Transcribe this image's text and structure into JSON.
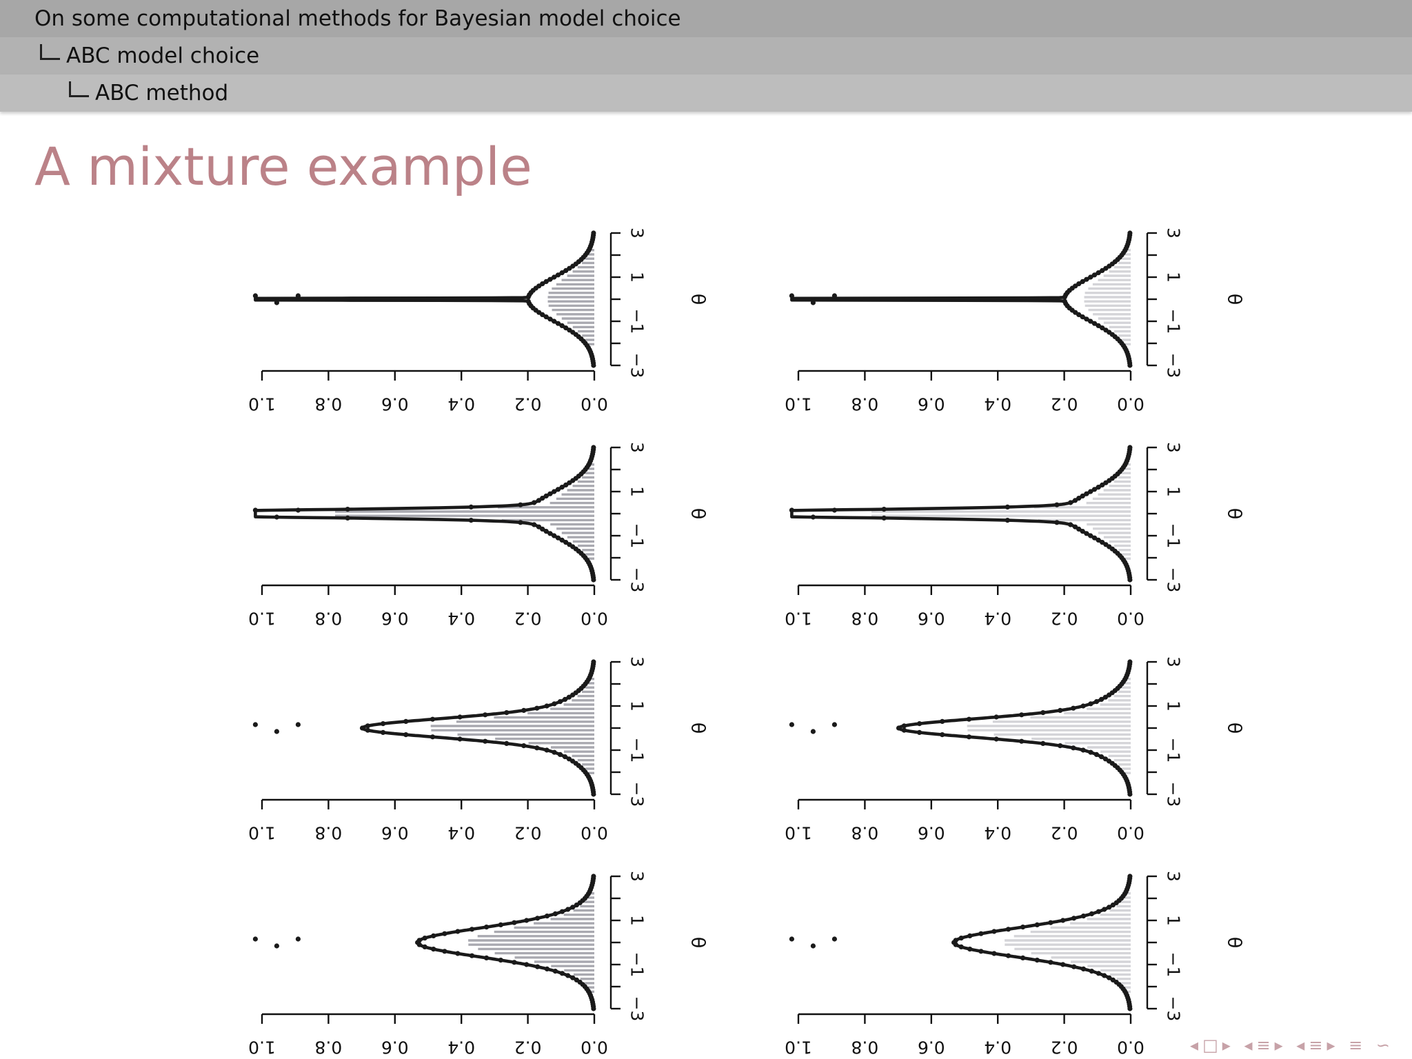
{
  "header": {
    "title": "On some computational methods for Bayesian model choice",
    "section": "ABC model choice",
    "subsection": "ABC method"
  },
  "frame_title": "A mixture example",
  "navigation_icons": [
    "arrow-left-icon",
    "frame-icon",
    "arrow-right-icon",
    "subsection-icon",
    "section-icon",
    "align-icon",
    "search-icon"
  ],
  "colors": {
    "title": "#bb8288",
    "curve": "#1a1a1a",
    "histogram_left": "#a9a9b0",
    "histogram_right": "#d4d4d8"
  },
  "chart_data": [
    {
      "type": "line",
      "panel": "row1-left",
      "xlabel": "θ",
      "ylabel": "",
      "xlim": [
        -3,
        3
      ],
      "ylim": [
        0,
        1
      ],
      "xticks": [
        "-3",
        "-1",
        "1",
        "3"
      ],
      "yticks": [
        "0.0",
        "0.2",
        "0.4",
        "0.6",
        "0.8",
        "1.0"
      ],
      "sigma": 0.02,
      "series": [
        {
          "values": "curve and dot markers"
        }
      ]
    },
    {
      "type": "line",
      "panel": "row1-right",
      "xlabel": "θ",
      "ylabel": "",
      "xlim": [
        -3,
        3
      ],
      "ylim": [
        0,
        1
      ],
      "xticks": [
        "-3",
        "-1",
        "1",
        "3"
      ],
      "yticks": [
        "0.0",
        "0.2",
        "0.4",
        "0.6",
        "0.8",
        "1.0"
      ],
      "sigma": 0.02,
      "series": [
        {
          "values": "curve and dot markers"
        }
      ]
    },
    {
      "type": "line",
      "panel": "row2-left",
      "xlabel": "θ",
      "ylabel": "",
      "xlim": [
        -3,
        3
      ],
      "ylim": [
        0,
        1
      ],
      "xticks": [
        "-3",
        "-1",
        "1",
        "3"
      ],
      "yticks": [
        "0.0",
        "0.2",
        "0.4",
        "0.6",
        "0.8",
        "1.0"
      ],
      "sigma": 0.15,
      "series": [
        {
          "values": "curve and dot markers"
        }
      ]
    },
    {
      "type": "line",
      "panel": "row2-right",
      "xlabel": "θ",
      "ylabel": "",
      "xlim": [
        -3,
        3
      ],
      "ylim": [
        0,
        1
      ],
      "xticks": [
        "-3",
        "-1",
        "1",
        "3"
      ],
      "yticks": [
        "0.0",
        "0.2",
        "0.4",
        "0.6",
        "0.8",
        "1.0"
      ],
      "sigma": 0.15,
      "series": [
        {
          "values": "curve and dot markers"
        }
      ]
    },
    {
      "type": "line",
      "panel": "row3-left",
      "xlabel": "θ",
      "ylabel": "",
      "xlim": [
        -3,
        3
      ],
      "ylim": [
        0,
        1
      ],
      "xticks": [
        "-3",
        "-1",
        "1",
        "3"
      ],
      "yticks": [
        "0.0",
        "0.2",
        "0.4",
        "0.6",
        "0.8",
        "1.0"
      ],
      "sigma": 0.4,
      "series": [
        {
          "values": "curve and dot markers"
        }
      ]
    },
    {
      "type": "line",
      "panel": "row3-right",
      "xlabel": "θ",
      "ylabel": "",
      "xlim": [
        -3,
        3
      ],
      "ylim": [
        0,
        1
      ],
      "xticks": [
        "-3",
        "-1",
        "1",
        "3"
      ],
      "yticks": [
        "0.0",
        "0.2",
        "0.4",
        "0.6",
        "0.8",
        "1.0"
      ],
      "sigma": 0.4,
      "series": [
        {
          "values": "curve and dot markers"
        }
      ]
    },
    {
      "type": "line",
      "panel": "row4-left",
      "xlabel": "θ",
      "ylabel": "",
      "xlim": [
        -3,
        3
      ],
      "ylim": [
        0,
        1
      ],
      "xticks": [
        "-3",
        "-1",
        "1",
        "3"
      ],
      "yticks": [
        "0.0",
        "0.2",
        "0.4",
        "0.6",
        "0.8",
        "1.0"
      ],
      "sigma": 0.6,
      "series": [
        {
          "values": "curve and dot markers"
        }
      ]
    },
    {
      "type": "line",
      "panel": "row4-right",
      "xlabel": "θ",
      "ylabel": "",
      "xlim": [
        -3,
        3
      ],
      "ylim": [
        0,
        1
      ],
      "xticks": [
        "-3",
        "-1",
        "1",
        "3"
      ],
      "yticks": [
        "0.0",
        "0.2",
        "0.4",
        "0.6",
        "0.8",
        "1.0"
      ],
      "sigma": 0.6,
      "series": [
        {
          "values": "curve and dot markers"
        }
      ]
    }
  ]
}
